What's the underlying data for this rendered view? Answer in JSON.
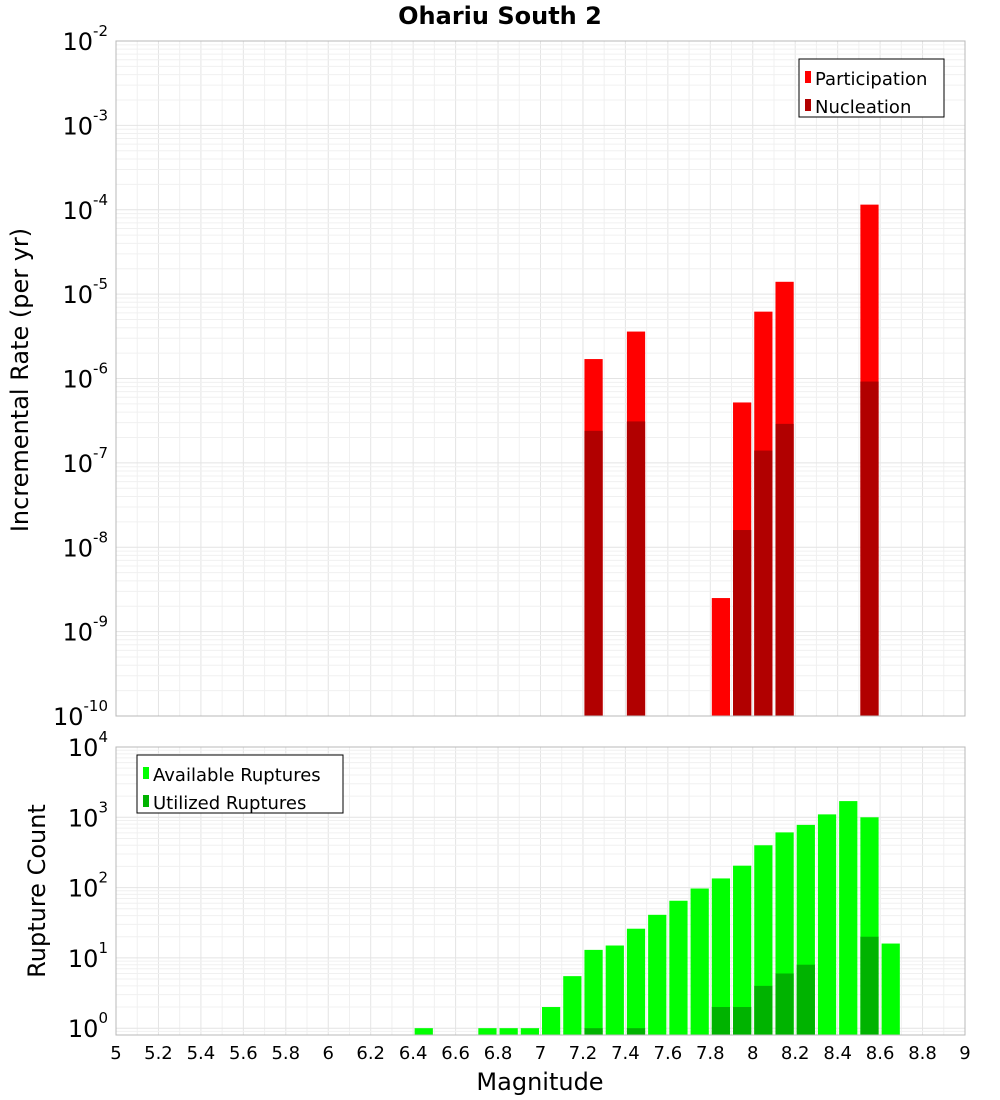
{
  "title": "Ohariu South 2",
  "chart_data": [
    {
      "type": "bar",
      "ylabel": "Incremental Rate (per yr)",
      "y_scale": "log",
      "ylim": [
        1e-10,
        0.01
      ],
      "xlim": [
        5,
        9
      ],
      "grid": true,
      "legend_position": "top-right",
      "y_tick_exponents": [
        "-10",
        "-9",
        "-8",
        "-7",
        "-6",
        "-5",
        "-4",
        "-3",
        "-2"
      ],
      "bin_width": 0.1,
      "colors": {
        "Participation": "#ff0000",
        "Nucleation": "#b10000"
      },
      "series": [
        {
          "name": "Participation",
          "x": [
            7.25,
            7.45,
            7.85,
            7.95,
            8.05,
            8.15,
            8.55
          ],
          "values": [
            1.7e-06,
            3.6e-06,
            2.5e-09,
            5.2e-07,
            6.2e-06,
            1.4e-05,
            0.000115
          ]
        },
        {
          "name": "Nucleation",
          "x": [
            7.25,
            7.45,
            7.95,
            8.05,
            8.15,
            8.55
          ],
          "values": [
            2.4e-07,
            3.1e-07,
            1.6e-08,
            1.4e-07,
            2.9e-07,
            9.2e-07
          ]
        }
      ]
    },
    {
      "type": "bar",
      "xlabel": "Magnitude",
      "ylabel": "Rupture Count",
      "y_scale": "log",
      "ylim": [
        0.8,
        10000
      ],
      "xlim": [
        5,
        9
      ],
      "grid": true,
      "legend_position": "top-left",
      "y_tick_exponents": [
        "0",
        "1",
        "2",
        "3",
        "4"
      ],
      "x_ticks": [
        "5",
        "5.2",
        "5.4",
        "5.6",
        "5.8",
        "6",
        "6.2",
        "6.4",
        "6.6",
        "6.8",
        "7",
        "7.2",
        "7.4",
        "7.6",
        "7.8",
        "8",
        "8.2",
        "8.4",
        "8.6",
        "8.8",
        "9"
      ],
      "bin_width": 0.1,
      "colors": {
        "Available Ruptures": "#00ff00",
        "Utilized Ruptures": "#00b300"
      },
      "series": [
        {
          "name": "Available Ruptures",
          "x": [
            6.45,
            6.75,
            6.85,
            6.95,
            7.05,
            7.15,
            7.25,
            7.35,
            7.45,
            7.55,
            7.65,
            7.75,
            7.85,
            7.95,
            8.05,
            8.15,
            8.25,
            8.35,
            8.45,
            8.55,
            8.65
          ],
          "values": [
            1,
            1,
            1,
            1,
            2,
            5.5,
            13,
            15,
            26,
            41,
            65,
            97,
            135,
            205,
            400,
            610,
            780,
            1100,
            1700,
            1000,
            16
          ]
        },
        {
          "name": "Utilized Ruptures",
          "x": [
            7.25,
            7.45,
            7.85,
            7.95,
            8.05,
            8.15,
            8.25,
            8.55
          ],
          "values": [
            1,
            1,
            2,
            2,
            4,
            6,
            8,
            20
          ]
        }
      ]
    }
  ]
}
